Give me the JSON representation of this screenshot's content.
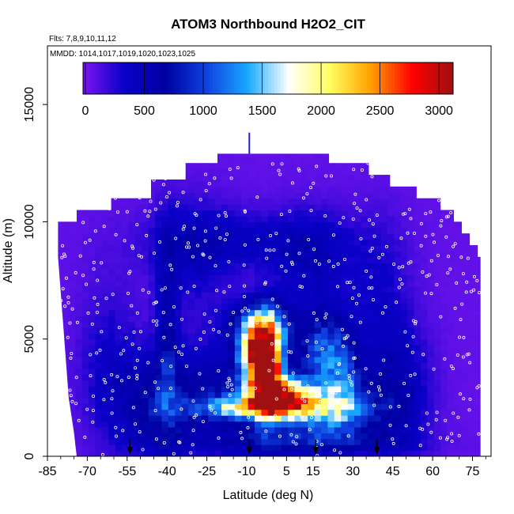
{
  "chart_data": {
    "type": "heatmap",
    "title": "ATOM3 Northbound H2O2_CIT",
    "flights_label": "Flts: 7,8,9,10,11,12",
    "dates_label": "MMDD: 1014,1017,1019,1020,1023,1025",
    "xlabel": "Latitude (deg N)",
    "ylabel": "Altitude (m)",
    "xlim": [
      -85,
      82
    ],
    "ylim": [
      0,
      17500
    ],
    "x_ticks": [
      -85,
      -70,
      -55,
      -40,
      -25,
      -10,
      5,
      15,
      30,
      45,
      60,
      75
    ],
    "y_ticks": [
      0,
      5000,
      10000,
      15000
    ],
    "colorbar": {
      "ticks": [
        0,
        500,
        1000,
        1500,
        2000,
        2500,
        3000
      ],
      "range": [
        -20,
        3120
      ],
      "colors": [
        "#7b16f0",
        "#0a00c8",
        "#0000a0",
        "#1040e0",
        "#18a8ff",
        "#ffffff",
        "#ffff60",
        "#ffa000",
        "#ff0000",
        "#a01010"
      ]
    },
    "outline": [
      [
        -74,
        0
      ],
      [
        -75,
        1000
      ],
      [
        -77,
        2500
      ],
      [
        -78,
        4000
      ],
      [
        -79,
        5500
      ],
      [
        -80,
        7000
      ],
      [
        -81,
        8500
      ],
      [
        -81,
        10000
      ],
      [
        -74,
        10000
      ],
      [
        -74,
        10500
      ],
      [
        -61,
        10500
      ],
      [
        -61,
        11000
      ],
      [
        -46,
        11000
      ],
      [
        -46,
        11800
      ],
      [
        -33,
        11800
      ],
      [
        -33,
        12500
      ],
      [
        -21,
        12500
      ],
      [
        -21,
        12900
      ],
      [
        21,
        12900
      ],
      [
        21,
        12500
      ],
      [
        36,
        12500
      ],
      [
        36,
        12000
      ],
      [
        44,
        12000
      ],
      [
        44,
        11500
      ],
      [
        54,
        11500
      ],
      [
        54,
        11000
      ],
      [
        63,
        11000
      ],
      [
        63,
        10500
      ],
      [
        68,
        10500
      ],
      [
        68,
        10000
      ],
      [
        71,
        10000
      ],
      [
        71,
        9500
      ],
      [
        74,
        9500
      ],
      [
        74,
        9000
      ],
      [
        77,
        9000
      ],
      [
        77,
        8500
      ],
      [
        78,
        8500
      ],
      [
        78,
        0
      ]
    ],
    "intensity_features": [
      {
        "lat": -2,
        "alt": 3800,
        "value": 2750,
        "sx": 4,
        "sy": 1300
      },
      {
        "lat": -7,
        "alt": 4300,
        "value": 2000,
        "sx": 4,
        "sy": 800
      },
      {
        "lat": 3,
        "alt": 2600,
        "value": 1800,
        "sx": 8,
        "sy": 500
      },
      {
        "lat": -5,
        "alt": 5600,
        "value": 1150,
        "sx": 8,
        "sy": 700
      },
      {
        "lat": -5,
        "alt": 2100,
        "value": 1400,
        "sx": 15,
        "sy": 300
      },
      {
        "lat": 20,
        "alt": 2000,
        "value": 1150,
        "sx": 14,
        "sy": 900
      },
      {
        "lat": 18,
        "alt": 4600,
        "value": 850,
        "sx": 6,
        "sy": 1000
      },
      {
        "lat": 26,
        "alt": 3500,
        "value": 650,
        "sx": 5,
        "sy": 1500
      },
      {
        "lat": -18,
        "alt": 2500,
        "value": 600,
        "sx": 20,
        "sy": 1500
      },
      {
        "lat": -40,
        "alt": 5000,
        "value": 450,
        "sx": 3,
        "sy": 3200
      },
      {
        "lat": 48,
        "alt": 2800,
        "value": 400,
        "sx": 8,
        "sy": 2000
      },
      {
        "lat": -45,
        "alt": 2000,
        "value": 420,
        "sx": 10,
        "sy": 1500
      },
      {
        "lat": -10,
        "alt": 9200,
        "value": 320,
        "sx": 25,
        "sy": 900
      },
      {
        "lat": 15,
        "alt": 8000,
        "value": 350,
        "sx": 10,
        "sy": 1600
      },
      {
        "lat": -30,
        "alt": 8500,
        "value": 280,
        "sx": 10,
        "sy": 1800
      },
      {
        "lat": 12,
        "alt": 600,
        "value": 450,
        "sx": 25,
        "sy": 350
      },
      {
        "lat": 40,
        "alt": 6500,
        "value": 260,
        "sx": 8,
        "sy": 2500
      },
      {
        "lat": -62,
        "alt": 4000,
        "value": 250,
        "sx": 8,
        "sy": 2500
      }
    ],
    "flight_markers": [
      -54,
      -9,
      16,
      39
    ]
  }
}
